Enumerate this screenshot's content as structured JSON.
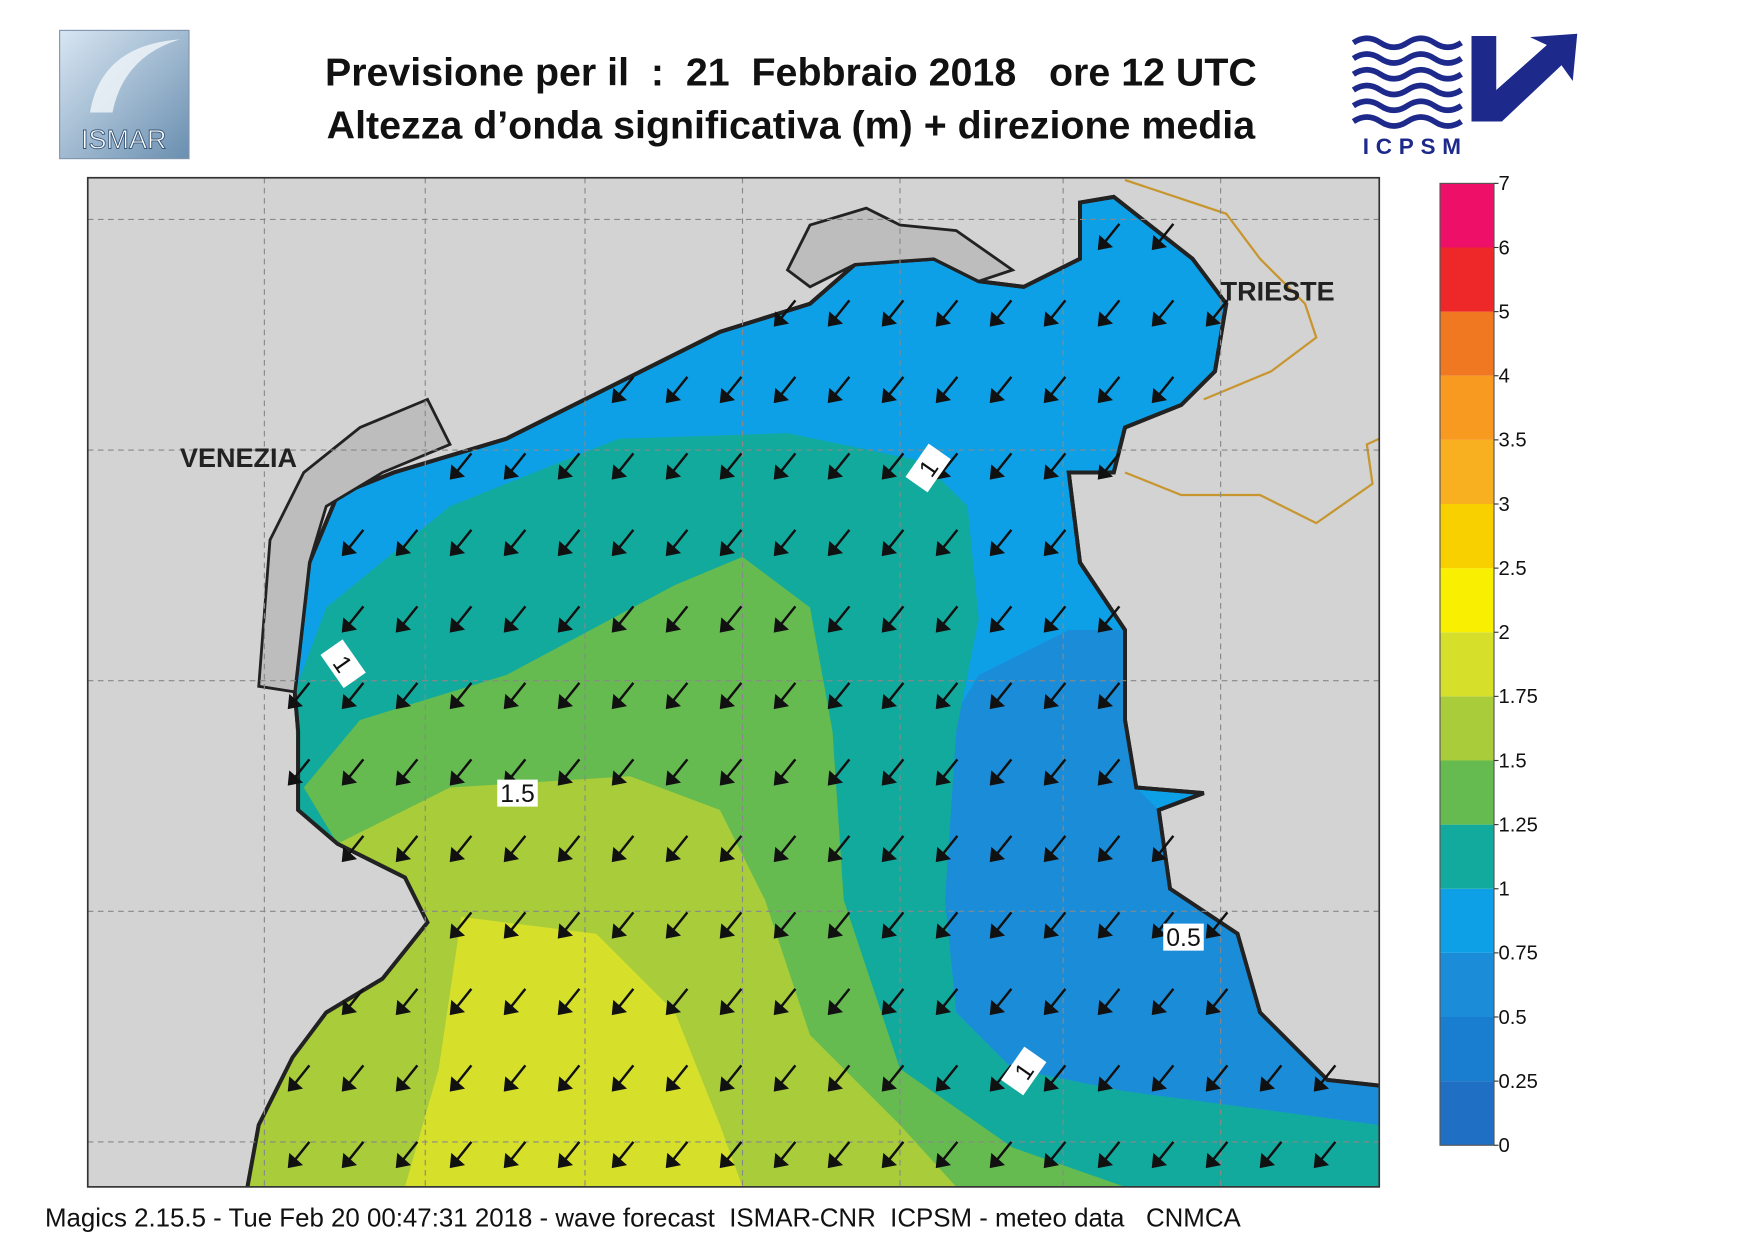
{
  "header": {
    "title_line1": "Previsione per il  :  21  Febbraio 2018   ore 12 UTC",
    "title_line2": "Altezza d’onda significativa (m) + direzione media",
    "logo_left": "ISMAR",
    "logo_right": "ICPSM"
  },
  "map": {
    "places": [
      "VENEZIA",
      "TRIESTE"
    ],
    "contour_labels": [
      1,
      1,
      1.5,
      0.5,
      1
    ]
  },
  "colorbar": {
    "ticks": [
      0,
      0.25,
      0.5,
      0.75,
      1,
      1.25,
      1.5,
      1.75,
      2,
      2.5,
      3,
      3.5,
      4,
      5,
      6,
      7
    ],
    "colors": [
      "#1f6fc4",
      "#1a7ed0",
      "#1b8dd8",
      "#0ea0e6",
      "#12aa9c",
      "#66bb50",
      "#a8cc3a",
      "#d6e02a",
      "#f8f000",
      "#f8d000",
      "#f8b020",
      "#f89a20",
      "#f07820",
      "#ee2828",
      "#ee1068"
    ]
  },
  "footer": "Magics 2.15.5 - Tue Feb 20 00:47:31 2018 - wave forecast  ISMAR-CNR  ICPSM - meteo data   CNMCA"
}
